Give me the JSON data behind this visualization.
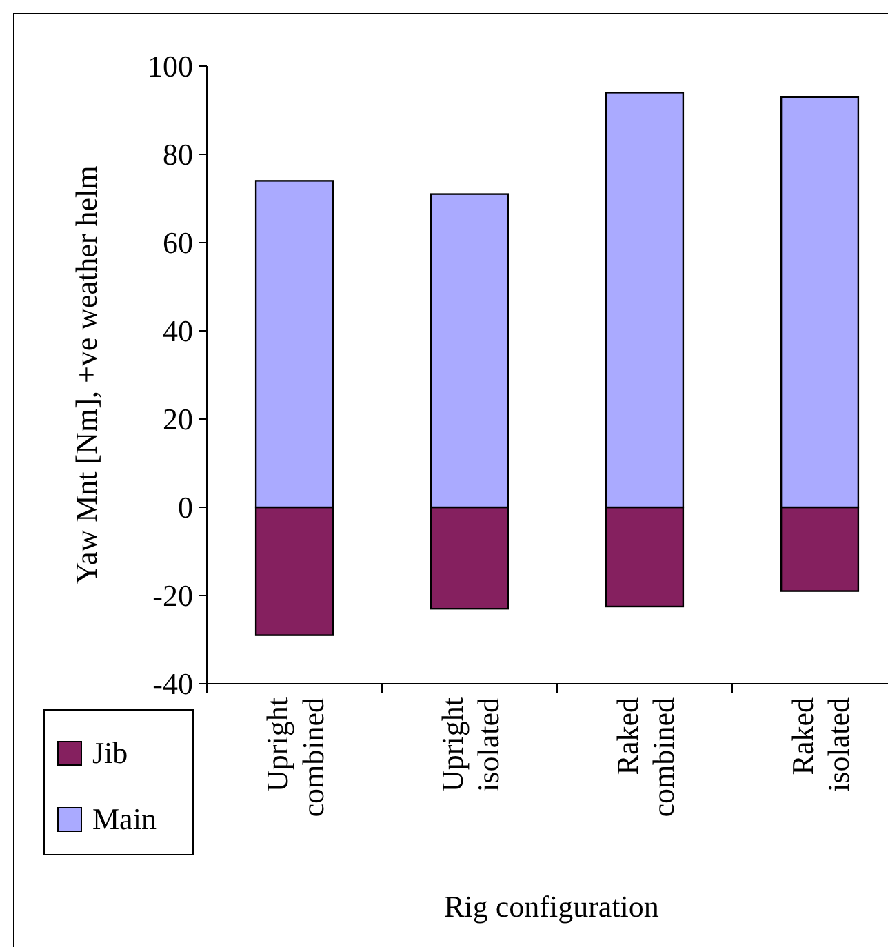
{
  "chart_data": {
    "type": "bar",
    "stacked": true,
    "xlabel": "Rig configuration",
    "ylabel": "Yaw Mnt [Nm], +ve weather helm",
    "categories": [
      "Upright combined",
      "Upright isolated",
      "Raked combined",
      "Raked isolated"
    ],
    "series": [
      {
        "name": "Jib",
        "color": "#85205f",
        "values": [
          -29,
          -23,
          -22.5,
          -19
        ]
      },
      {
        "name": "Main",
        "color": "#aaaaff",
        "values": [
          74,
          71,
          94,
          93
        ]
      }
    ],
    "ylim": [
      -40,
      100
    ],
    "yticks": [
      -40,
      -20,
      0,
      20,
      40,
      60,
      80,
      100
    ],
    "grid": false,
    "legend": "bottom left"
  }
}
